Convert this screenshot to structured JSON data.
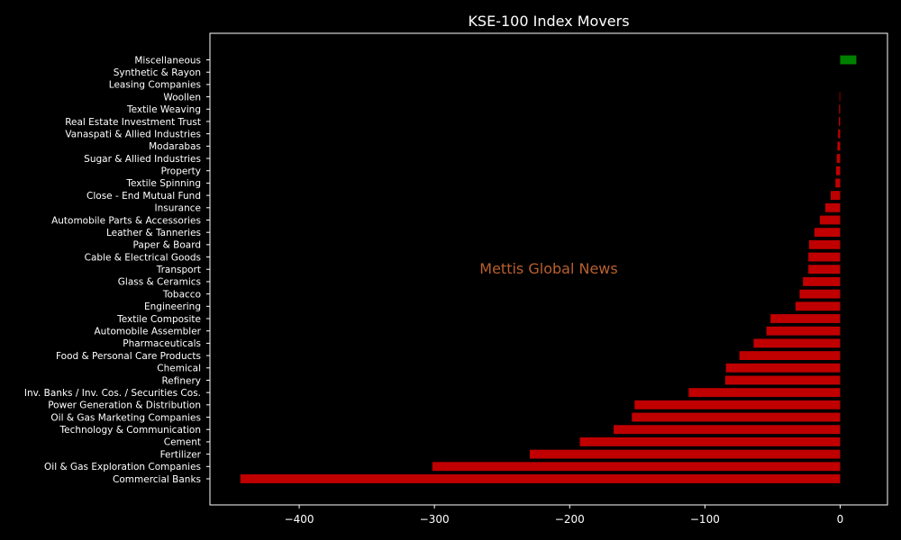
{
  "chart_data": {
    "type": "bar",
    "orientation": "horizontal",
    "title": "KSE-100 Index Movers",
    "watermark": "Mettis Global News",
    "xlim": [
      -466,
      35
    ],
    "xticks": [
      -400,
      -300,
      -200,
      -100,
      0
    ],
    "xtick_labels": [
      "−400",
      "−300",
      "−200",
      "−100",
      "0"
    ],
    "grid": false,
    "legend": "none",
    "colors": {
      "background": "#000000",
      "positive": "#008000",
      "negative": "#c00000",
      "axis": "#ffffff",
      "text": "#ffffff",
      "watermark": "#b8602e"
    },
    "categories": [
      "Miscellaneous",
      "Synthetic & Rayon",
      "Leasing Companies",
      "Woollen",
      "Textile Weaving",
      "Real Estate Investment Trust",
      "Vanaspati & Allied Industries",
      "Modarabas",
      "Sugar & Allied Industries",
      "Property",
      "Textile Spinning",
      "Close - End Mutual Fund",
      "Insurance",
      "Automobile Parts & Accessories",
      "Leather & Tanneries",
      "Paper & Board",
      "Cable & Electrical Goods",
      "Transport",
      "Glass & Ceramics",
      "Tobacco",
      "Engineering",
      "Textile Composite",
      "Automobile Assembler",
      "Pharmaceuticals",
      "Food & Personal Care Products",
      "Chemical",
      "Refinery",
      "Inv. Banks / Inv. Cos. / Securities Cos.",
      "Power Generation & Distribution",
      "Oil & Gas Marketing Companies",
      "Technology & Communication",
      "Cement",
      "Fertilizer",
      "Oil & Gas Exploration Companies",
      "Commercial Banks"
    ],
    "values": [
      12,
      0,
      0,
      -0.5,
      -0.8,
      -1,
      -1.5,
      -2,
      -2.5,
      -3,
      -3.5,
      -7,
      -11,
      -15,
      -19,
      -23,
      -23.5,
      -23.5,
      -27.5,
      -30,
      -33,
      -51.5,
      -54.5,
      -64,
      -74.5,
      -84.5,
      -85,
      -112,
      -152,
      -154,
      -167.5,
      -192.5,
      -229.5,
      -301.5,
      -443.5
    ]
  }
}
